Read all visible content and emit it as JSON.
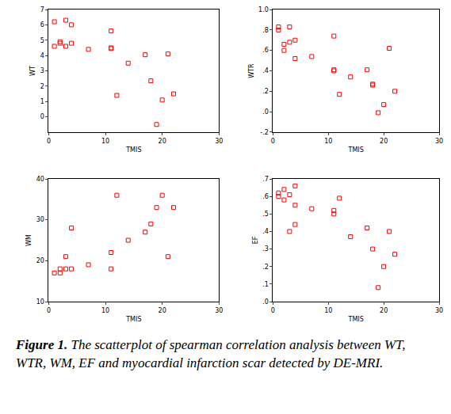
{
  "chart_data": [
    {
      "type": "scatter",
      "x_label": "TMIS",
      "y_label": "WT",
      "x": [
        1,
        1,
        2,
        2,
        3,
        3,
        4,
        4,
        7,
        11,
        11,
        11,
        12,
        14,
        17,
        18,
        19,
        20,
        21,
        22
      ],
      "values": [
        6.2,
        4.6,
        4.9,
        4.8,
        6.3,
        4.6,
        6.0,
        4.8,
        4.4,
        5.6,
        4.5,
        4.45,
        1.4,
        3.5,
        4.05,
        2.35,
        -0.5,
        1.1,
        4.1,
        1.5
      ],
      "color": "#ff0000",
      "marker": "square-open",
      "grid": false,
      "xlim": [
        0,
        30
      ],
      "xticks": [
        0,
        10,
        20,
        30
      ],
      "ylim": [
        -1,
        7
      ],
      "yticks": [
        0,
        1,
        2,
        3,
        4,
        5,
        6,
        7
      ]
    },
    {
      "type": "scatter",
      "x_label": "TMIS",
      "y_label": "WTR",
      "x": [
        1,
        1,
        2,
        2,
        3,
        3,
        4,
        4,
        7,
        11,
        11,
        11,
        12,
        14,
        17,
        18,
        18,
        19,
        20,
        21,
        22
      ],
      "values": [
        0.83,
        0.8,
        0.66,
        0.6,
        0.83,
        0.68,
        0.7,
        0.52,
        0.54,
        0.74,
        0.41,
        0.4,
        0.17,
        0.34,
        0.41,
        0.27,
        0.26,
        -0.01,
        0.07,
        0.62,
        0.2
      ],
      "color": "#ff0000",
      "marker": "square-open",
      "grid": false,
      "xlim": [
        0,
        30
      ],
      "xticks": [
        0,
        10,
        20,
        30
      ],
      "ylim": [
        -0.2,
        1.0
      ],
      "yticks": [
        {
          "value": -0.2,
          "label": "-.2"
        },
        {
          "value": 0,
          "label": ".0"
        },
        {
          "value": 0.2,
          "label": ".2"
        },
        {
          "value": 0.4,
          "label": ".4"
        },
        {
          "value": 0.6,
          "label": ".6"
        },
        {
          "value": 0.8,
          "label": ".8"
        },
        {
          "value": 1.0,
          "label": "1.0"
        }
      ]
    },
    {
      "type": "scatter",
      "x_label": "TMIS",
      "y_label": "WM",
      "x": [
        1,
        2,
        2,
        3,
        3,
        4,
        4,
        7,
        11,
        11,
        12,
        14,
        17,
        18,
        19,
        20,
        21,
        22
      ],
      "values": [
        17,
        18,
        17,
        21,
        18,
        28,
        18,
        19,
        22,
        18,
        36,
        25,
        27,
        29,
        33,
        36,
        21,
        33
      ],
      "color": "#ff0000",
      "marker": "square-open",
      "grid": false,
      "xlim": [
        0,
        30
      ],
      "xticks": [
        0,
        10,
        20,
        30
      ],
      "ylim": [
        10,
        40
      ],
      "yticks": [
        10,
        20,
        30,
        40
      ]
    },
    {
      "type": "scatter",
      "x_label": "TMIS",
      "y_label": "EF",
      "x": [
        1,
        1,
        2,
        2,
        3,
        3,
        4,
        4,
        4,
        7,
        11,
        11,
        12,
        14,
        17,
        18,
        19,
        20,
        21,
        22
      ],
      "values": [
        0.62,
        0.6,
        0.64,
        0.58,
        0.61,
        0.4,
        0.66,
        0.55,
        0.44,
        0.53,
        0.52,
        0.5,
        0.59,
        0.37,
        0.42,
        0.3,
        0.08,
        0.2,
        0.4,
        0.27
      ],
      "color": "#ff0000",
      "marker": "square-open",
      "grid": false,
      "xlim": [
        0,
        30
      ],
      "xticks": [
        0,
        10,
        20,
        30
      ],
      "ylim": [
        0,
        0.7
      ],
      "yticks": [
        {
          "value": 0,
          "label": ".0"
        },
        {
          "value": 0.1,
          "label": ".1"
        },
        {
          "value": 0.2,
          "label": ".2"
        },
        {
          "value": 0.3,
          "label": ".3"
        },
        {
          "value": 0.4,
          "label": ".4"
        },
        {
          "value": 0.5,
          "label": ".5"
        },
        {
          "value": 0.6,
          "label": ".6"
        },
        {
          "value": 0.7,
          "label": ".7"
        }
      ]
    }
  ],
  "caption": {
    "label": "Figure 1.",
    "text": "The scatterplot of spearman correlation analysis between WT, WTR, WM, EF and myocardial infarction scar detected by DE-MRI."
  }
}
